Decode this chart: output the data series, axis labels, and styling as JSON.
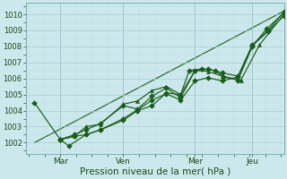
{
  "xlabel": "Pression niveau de la mer( hPa )",
  "bg_color": "#cce8ec",
  "grid_color_major": "#aacdd4",
  "grid_color_minor": "#bbdde2",
  "line_color": "#1a5c1a",
  "ylim": [
    1001.3,
    1010.7
  ],
  "xlim": [
    -0.3,
    8.7
  ],
  "x_ticks": [
    0.9,
    3.1,
    5.6,
    7.6
  ],
  "x_labels": [
    "Mar",
    "Ven",
    "Mer",
    "Jeu"
  ],
  "y_ticks": [
    1002,
    1003,
    1004,
    1005,
    1006,
    1007,
    1008,
    1009,
    1010
  ],
  "trend_x": [
    0.0,
    8.7
  ],
  "trend_y": [
    1002.0,
    1010.2
  ],
  "line1_x": [
    0.0,
    0.9,
    1.2,
    1.8,
    2.3,
    3.1,
    3.6,
    4.1,
    4.6,
    5.1,
    5.4,
    5.85,
    6.3,
    6.6,
    7.1,
    7.6,
    8.1,
    8.7
  ],
  "line1_y": [
    1004.5,
    1002.2,
    1001.8,
    1002.5,
    1002.8,
    1003.4,
    1004.0,
    1004.3,
    1005.1,
    1005.0,
    1006.5,
    1006.6,
    1006.5,
    1006.1,
    1005.9,
    1008.0,
    1009.1,
    1010.1
  ],
  "line2_x": [
    0.9,
    1.4,
    1.8,
    2.3,
    3.1,
    3.6,
    4.1,
    4.6,
    5.1,
    5.6,
    6.05,
    6.55,
    7.1,
    7.6,
    8.15,
    8.7
  ],
  "line2_y": [
    1002.2,
    1002.5,
    1002.8,
    1003.2,
    1004.3,
    1004.1,
    1004.9,
    1005.4,
    1004.8,
    1006.5,
    1006.6,
    1006.35,
    1006.15,
    1008.1,
    1009.0,
    1010.15
  ],
  "line3_x": [
    0.9,
    1.4,
    1.8,
    2.3,
    3.1,
    3.6,
    4.1,
    4.6,
    5.1,
    5.6,
    6.05,
    6.55,
    7.2,
    7.85,
    8.7
  ],
  "line3_y": [
    1002.2,
    1002.4,
    1003.0,
    1003.15,
    1004.4,
    1004.6,
    1005.25,
    1005.5,
    1005.0,
    1006.5,
    1006.45,
    1006.15,
    1005.9,
    1008.1,
    1010.0
  ],
  "line4_x": [
    0.9,
    1.4,
    1.8,
    2.3,
    3.1,
    3.6,
    4.1,
    4.6,
    5.1,
    5.6,
    6.05,
    6.55,
    7.1,
    7.6,
    8.15,
    8.7
  ],
  "line4_y": [
    1002.2,
    1002.4,
    1002.5,
    1002.8,
    1003.5,
    1004.05,
    1004.65,
    1005.05,
    1004.65,
    1005.85,
    1006.05,
    1005.85,
    1006.1,
    1008.05,
    1008.95,
    1009.9
  ]
}
